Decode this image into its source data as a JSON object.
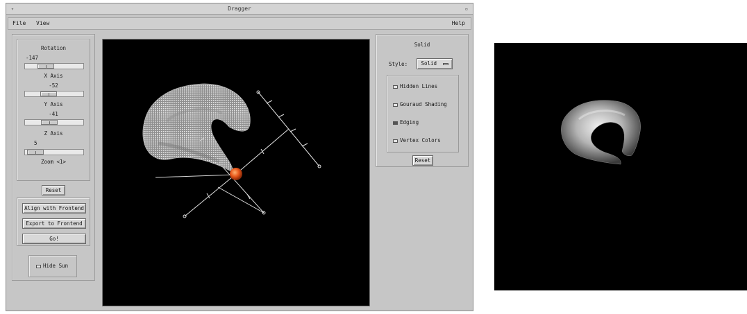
{
  "window": {
    "title": "Dragger",
    "menu": {
      "file": "File",
      "view": "View",
      "help": "Help"
    }
  },
  "rotation": {
    "title": "Rotation",
    "x": {
      "value": "-147",
      "label": "X Axis",
      "fraction": 0.3
    },
    "y": {
      "value": "-52",
      "label": "Y Axis",
      "fraction": 0.36
    },
    "z": {
      "value": "-41",
      "label": "Z Axis",
      "fraction": 0.38
    },
    "zoom": {
      "value": "5",
      "label": "Zoom <1>",
      "fraction": 0.05
    }
  },
  "buttons": {
    "reset_rotation": "Reset",
    "align": "Align with Frontend",
    "export": "Export to Frontend",
    "go": "Go!",
    "reset_solid": "Reset"
  },
  "hide_sun": {
    "label": "Hide Sun",
    "checked": false
  },
  "solid": {
    "title": "Solid",
    "style_label": "Style:",
    "style_value": "Solid",
    "options": [
      {
        "label": "Hidden Lines",
        "checked": false
      },
      {
        "label": "Gouraud Shading",
        "checked": false
      },
      {
        "label": "Edging",
        "checked": true
      },
      {
        "label": "Vertex Colors",
        "checked": false
      }
    ]
  },
  "colors": {
    "window_bg": "#c6c6c6",
    "viewport_bg": "#000000",
    "sun": "#e8571a",
    "mesh": "#cfcfcf"
  }
}
